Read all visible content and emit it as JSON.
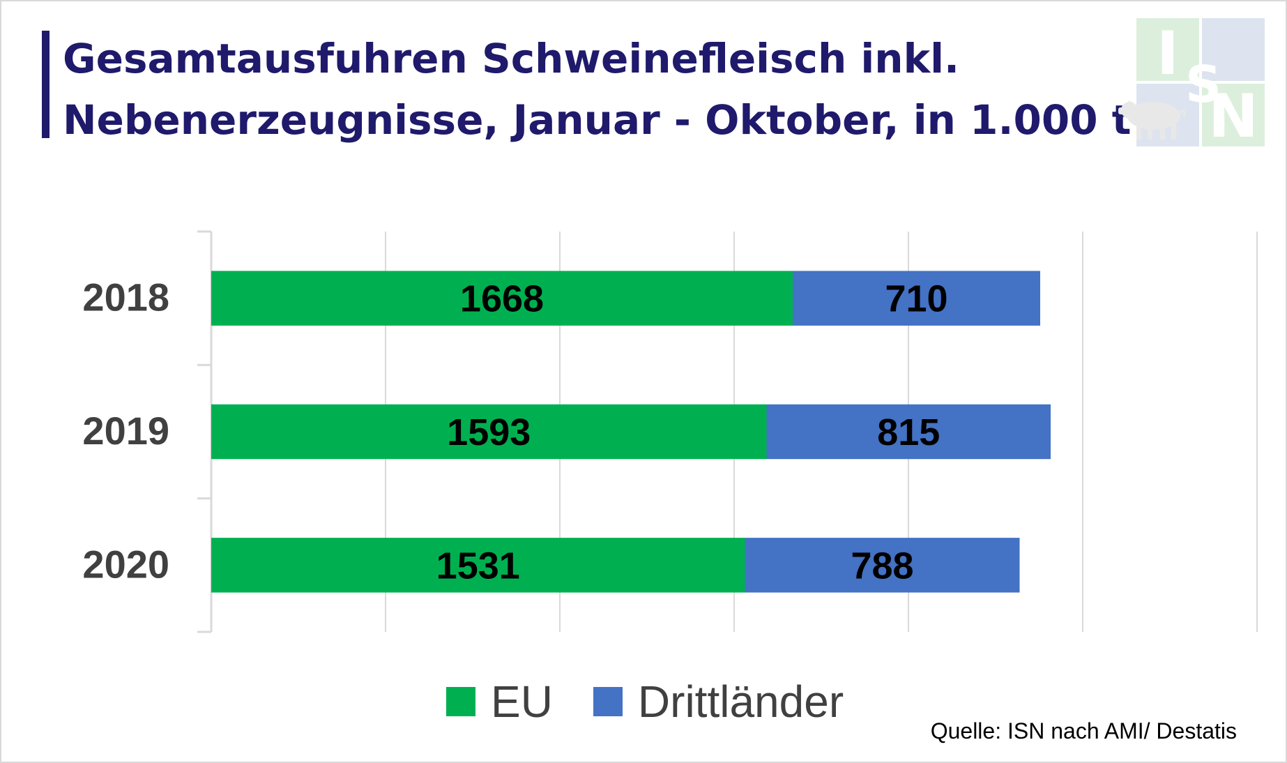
{
  "title": {
    "line1": "Gesamtausfuhren Schweinefleisch inkl.",
    "line2": "Nebenerzeugnisse, Januar - Oktober, in 1.000 t"
  },
  "logo": {
    "letters": [
      "I",
      "S",
      "N"
    ],
    "icon": "pig-icon"
  },
  "colors": {
    "title": "#1f1a6b",
    "eu": "#00b050",
    "third": "#4472c4",
    "grid": "#d9d9d9",
    "category_label": "#404040"
  },
  "chart_data": {
    "type": "bar",
    "orientation": "horizontal",
    "stacked": true,
    "title": "Gesamtausfuhren Schweinefleisch inkl. Nebenerzeugnisse, Januar - Oktober, in 1.000 t",
    "categories": [
      "2018",
      "2019",
      "2020"
    ],
    "series": [
      {
        "name": "EU",
        "color": "#00b050",
        "values": [
          1668,
          1593,
          1531
        ]
      },
      {
        "name": "Drittländer",
        "color": "#4472c4",
        "values": [
          710,
          815,
          788
        ]
      }
    ],
    "xlim": [
      0,
      3000
    ],
    "grid": true,
    "data_labels": true,
    "legend_position": "bottom"
  },
  "legend": [
    {
      "label": "EU",
      "color": "#00b050"
    },
    {
      "label": "Drittländer",
      "color": "#4472c4"
    }
  ],
  "source": "Quelle: ISN nach AMI/ Destatis"
}
